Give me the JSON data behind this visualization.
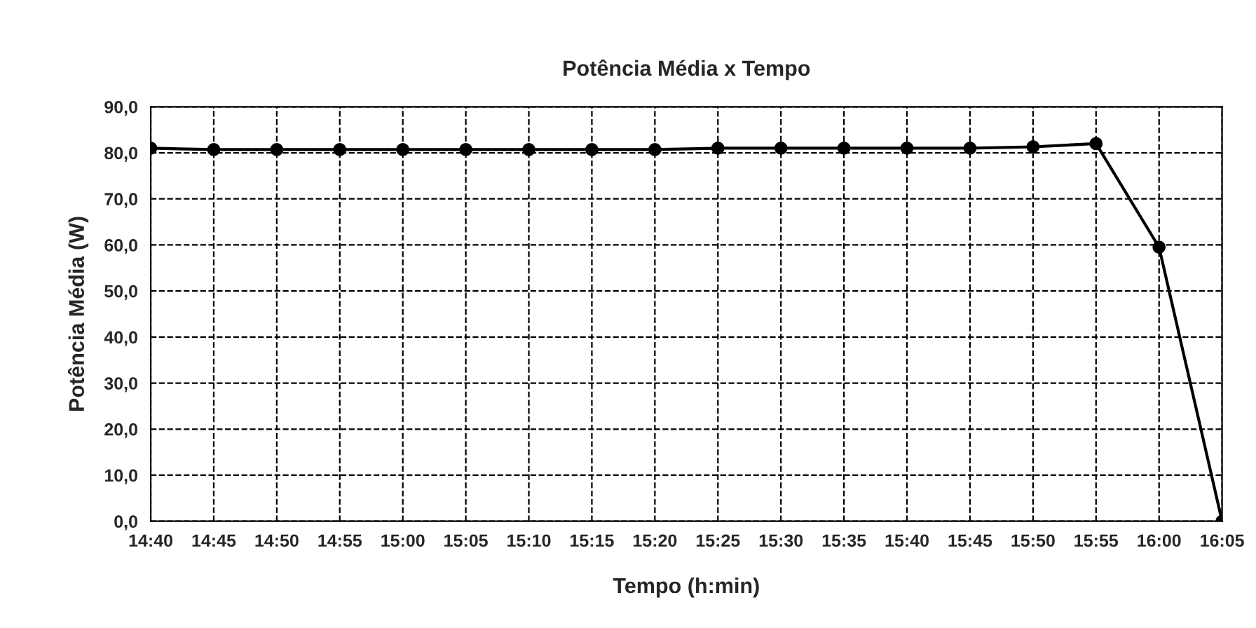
{
  "chart_data": {
    "type": "line",
    "title": "Potência Média x Tempo",
    "xlabel": "Tempo (h:min)",
    "ylabel": "Potência Média (W)",
    "categories": [
      "14:40",
      "14:45",
      "14:50",
      "14:55",
      "15:00",
      "15:05",
      "15:10",
      "15:15",
      "15:20",
      "15:25",
      "15:30",
      "15:35",
      "15:40",
      "15:45",
      "15:50",
      "15:55",
      "16:00",
      "16:05"
    ],
    "series": [
      {
        "color": "#000000",
        "values": [
          81.0,
          80.7,
          80.7,
          80.7,
          80.7,
          80.7,
          80.7,
          80.7,
          80.7,
          81.0,
          81.0,
          81.0,
          81.0,
          81.0,
          81.3,
          82.0,
          59.5,
          0.0
        ]
      }
    ],
    "ylim": [
      0,
      90
    ],
    "yticks": [
      {
        "value": 0,
        "label": "0,0"
      },
      {
        "value": 10,
        "label": "10,0"
      },
      {
        "value": 20,
        "label": "20,0"
      },
      {
        "value": 30,
        "label": "30,0"
      },
      {
        "value": 40,
        "label": "40,0"
      },
      {
        "value": 50,
        "label": "50,0"
      },
      {
        "value": 60,
        "label": "60,0"
      },
      {
        "value": 70,
        "label": "70,0"
      },
      {
        "value": 80,
        "label": "80,0"
      },
      {
        "value": 90,
        "label": "90,0"
      }
    ],
    "grid": true,
    "marker": "circle",
    "line_style": "solid"
  }
}
